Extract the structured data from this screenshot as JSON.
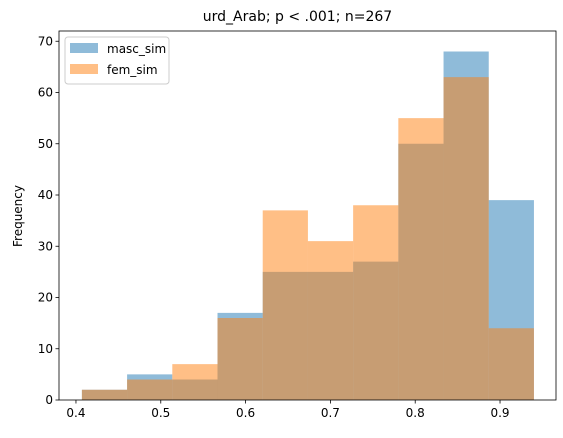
{
  "chart_data": {
    "type": "histogram",
    "title": "urd_Arab; p < .001; n=267",
    "xlabel": "",
    "ylabel": "Frequency",
    "xlim": [
      0.38,
      0.966
    ],
    "ylim": [
      0,
      72
    ],
    "bin_edges": [
      0.407,
      0.4603,
      0.5136,
      0.5669,
      0.6202,
      0.6735,
      0.7268,
      0.7801,
      0.8334,
      0.8867,
      0.94
    ],
    "series": [
      {
        "name": "masc_sim",
        "color": "#1f77b4",
        "alpha": 0.5,
        "values": [
          2,
          5,
          4,
          17,
          25,
          25,
          27,
          50,
          68,
          39
        ]
      },
      {
        "name": "fem_sim",
        "color": "#ff7f0e",
        "alpha": 0.5,
        "values": [
          2,
          4,
          7,
          16,
          37,
          31,
          38,
          55,
          63,
          14
        ]
      }
    ],
    "xticks": [
      0.4,
      0.5,
      0.6,
      0.7,
      0.8,
      0.9
    ],
    "xtick_labels": [
      "0.4",
      "0.5",
      "0.6",
      "0.7",
      "0.8",
      "0.9"
    ],
    "yticks": [
      0,
      10,
      20,
      30,
      40,
      50,
      60,
      70
    ],
    "ytick_labels": [
      "0",
      "10",
      "20",
      "30",
      "40",
      "50",
      "60",
      "70"
    ],
    "legend_position": "top-left"
  }
}
